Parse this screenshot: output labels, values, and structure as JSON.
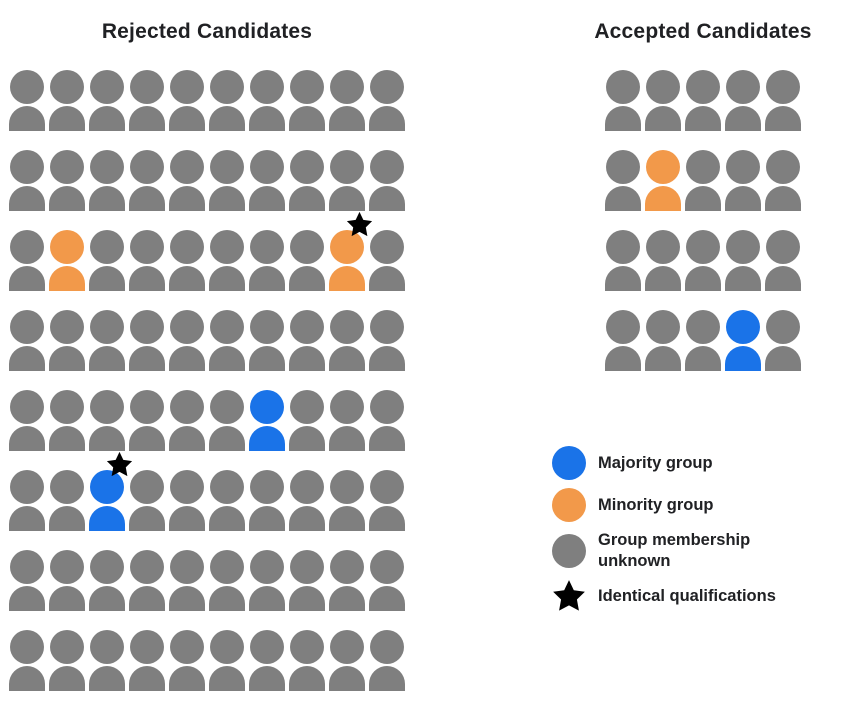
{
  "colors": {
    "majority": "#1A73E8",
    "minority": "#F2994A",
    "unknown": "#7F7F7F",
    "star": "#000000",
    "text": "#202124",
    "background": "#FFFFFF"
  },
  "rejected": {
    "title": "Rejected Candidates",
    "columns": 10,
    "rows": [
      [
        "unknown",
        "unknown",
        "unknown",
        "unknown",
        "unknown",
        "unknown",
        "unknown",
        "unknown",
        "unknown",
        "unknown"
      ],
      [
        "unknown",
        "unknown",
        "unknown",
        "unknown",
        "unknown",
        "unknown",
        "unknown",
        "unknown",
        "unknown",
        "unknown"
      ],
      [
        "unknown",
        "minority",
        "unknown",
        "unknown",
        "unknown",
        "unknown",
        "unknown",
        "unknown",
        "minority+star",
        "unknown"
      ],
      [
        "unknown",
        "unknown",
        "unknown",
        "unknown",
        "unknown",
        "unknown",
        "unknown",
        "unknown",
        "unknown",
        "unknown"
      ],
      [
        "unknown",
        "unknown",
        "unknown",
        "unknown",
        "unknown",
        "unknown",
        "majority",
        "unknown",
        "unknown",
        "unknown"
      ],
      [
        "unknown",
        "unknown",
        "majority+star",
        "unknown",
        "unknown",
        "unknown",
        "unknown",
        "unknown",
        "unknown",
        "unknown"
      ],
      [
        "unknown",
        "unknown",
        "unknown",
        "unknown",
        "unknown",
        "unknown",
        "unknown",
        "unknown",
        "unknown",
        "unknown"
      ],
      [
        "unknown",
        "unknown",
        "unknown",
        "unknown",
        "unknown",
        "unknown",
        "unknown",
        "unknown",
        "unknown",
        "unknown"
      ]
    ]
  },
  "accepted": {
    "title": "Accepted Candidates",
    "columns": 5,
    "rows": [
      [
        "unknown",
        "unknown",
        "unknown",
        "unknown",
        "unknown"
      ],
      [
        "unknown",
        "minority",
        "unknown",
        "unknown",
        "unknown"
      ],
      [
        "unknown",
        "unknown",
        "unknown",
        "unknown",
        "unknown"
      ],
      [
        "unknown",
        "unknown",
        "unknown",
        "majority",
        "unknown"
      ]
    ]
  },
  "legend": {
    "items": [
      {
        "swatch": "majority",
        "label": "Majority group"
      },
      {
        "swatch": "minority",
        "label": "Minority group"
      },
      {
        "swatch": "unknown",
        "label": "Group membership\nunknown"
      },
      {
        "swatch": "star",
        "label": "Identical qualifications"
      }
    ]
  }
}
